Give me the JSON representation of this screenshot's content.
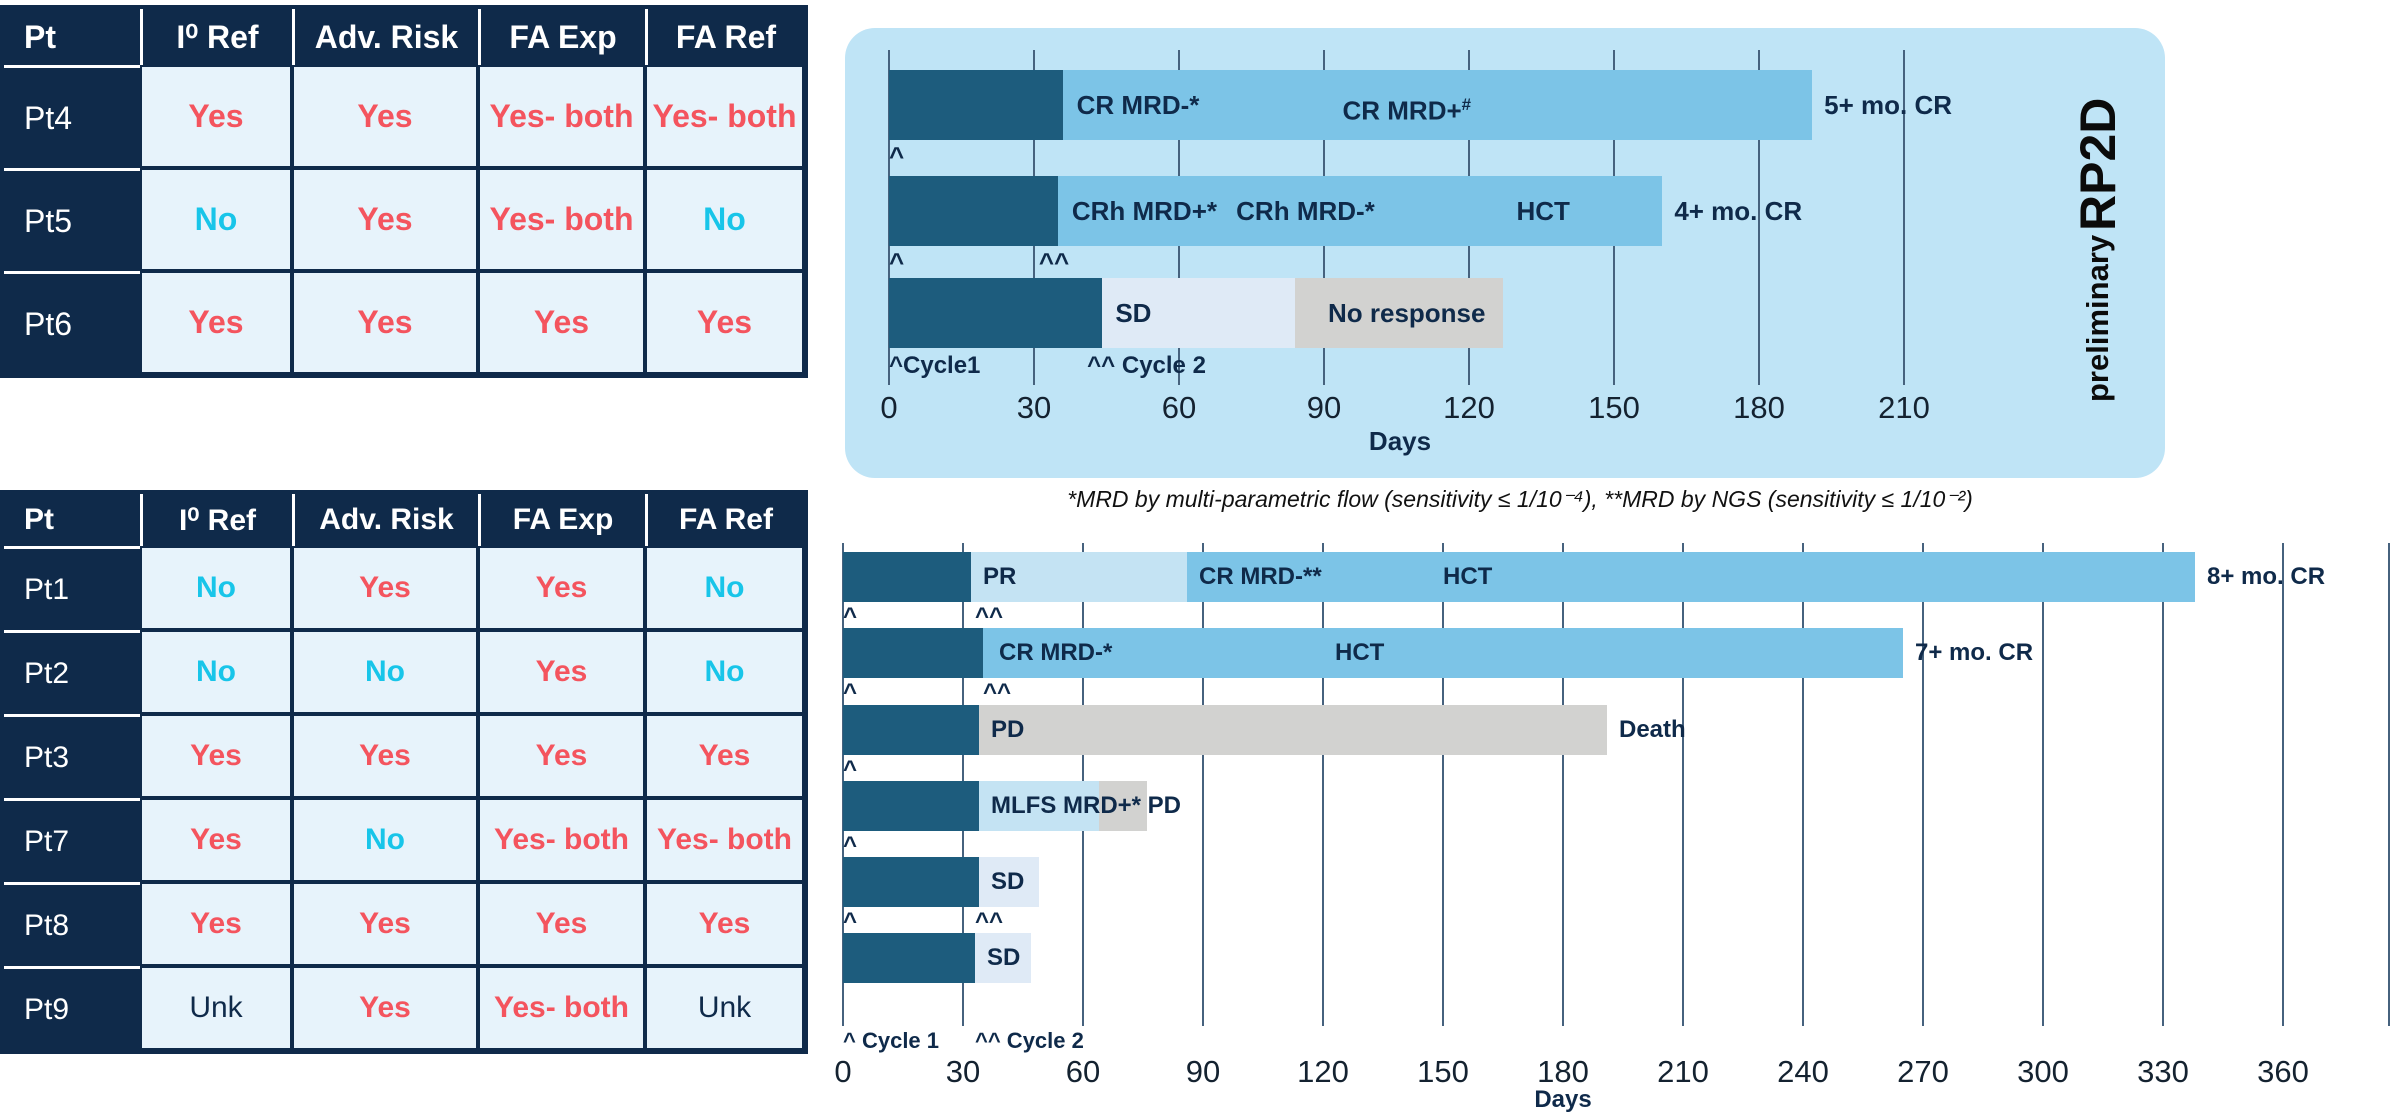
{
  "colors": {
    "navy": "#0f2a4a",
    "red": "#f4545e",
    "cyan": "#18c5e9",
    "cell_bg": "#e7f3fb",
    "panel_bg": "#bfe4f6",
    "bar_dark": "#1d5c7d",
    "bar_response": "#7cc4e7",
    "bar_partial": "#c4e3f3",
    "bar_sd": "#dfeaf6",
    "bar_none": "#d2d2d0",
    "grid": "#46627e",
    "tick_text": "#142230"
  },
  "tables": {
    "top": {
      "headers": [
        "Pt",
        "I⁰ Ref",
        "Adv. Risk",
        "FA Exp",
        "FA Ref"
      ],
      "rows": [
        {
          "pt": "Pt4",
          "cells": [
            {
              "text": "Yes",
              "color": "red"
            },
            {
              "text": "Yes",
              "color": "red"
            },
            {
              "text": "Yes- both",
              "color": "red"
            },
            {
              "text": "Yes- both",
              "color": "red"
            }
          ]
        },
        {
          "pt": "Pt5",
          "cells": [
            {
              "text": "No",
              "color": "cyan"
            },
            {
              "text": "Yes",
              "color": "red"
            },
            {
              "text": "Yes- both",
              "color": "red"
            },
            {
              "text": "No",
              "color": "cyan"
            }
          ]
        },
        {
          "pt": "Pt6",
          "cells": [
            {
              "text": "Yes",
              "color": "red"
            },
            {
              "text": "Yes",
              "color": "red"
            },
            {
              "text": "Yes",
              "color": "red"
            },
            {
              "text": "Yes",
              "color": "red"
            }
          ]
        }
      ]
    },
    "bottom": {
      "headers": [
        "Pt",
        "I⁰ Ref",
        "Adv. Risk",
        "FA Exp",
        "FA Ref"
      ],
      "rows": [
        {
          "pt": "Pt1",
          "cells": [
            {
              "text": "No",
              "color": "cyan"
            },
            {
              "text": "Yes",
              "color": "red"
            },
            {
              "text": "Yes",
              "color": "red"
            },
            {
              "text": "No",
              "color": "cyan"
            }
          ]
        },
        {
          "pt": "Pt2",
          "cells": [
            {
              "text": "No",
              "color": "cyan"
            },
            {
              "text": "No",
              "color": "cyan"
            },
            {
              "text": "Yes",
              "color": "red"
            },
            {
              "text": "No",
              "color": "cyan"
            }
          ]
        },
        {
          "pt": "Pt3",
          "cells": [
            {
              "text": "Yes",
              "color": "red"
            },
            {
              "text": "Yes",
              "color": "red"
            },
            {
              "text": "Yes",
              "color": "red"
            },
            {
              "text": "Yes",
              "color": "red"
            }
          ]
        },
        {
          "pt": "Pt7",
          "cells": [
            {
              "text": "Yes",
              "color": "red"
            },
            {
              "text": "No",
              "color": "cyan"
            },
            {
              "text": "Yes- both",
              "color": "red"
            },
            {
              "text": "Yes- both",
              "color": "red"
            }
          ]
        },
        {
          "pt": "Pt8",
          "cells": [
            {
              "text": "Yes",
              "color": "red"
            },
            {
              "text": "Yes",
              "color": "red"
            },
            {
              "text": "Yes",
              "color": "red"
            },
            {
              "text": "Yes",
              "color": "red"
            }
          ]
        },
        {
          "pt": "Pt9",
          "cells": [
            {
              "text": "Unk",
              "color": "navy"
            },
            {
              "text": "Yes",
              "color": "red"
            },
            {
              "text": "Yes- both",
              "color": "red"
            },
            {
              "text": "Unk",
              "color": "navy"
            }
          ]
        }
      ]
    }
  },
  "rp2d_label": {
    "line1": "preliminary",
    "line2": "RP2D"
  },
  "footnote": "*MRD by multi-parametric flow  (sensitivity ≤ 1/10⁻⁴), **MRD by NGS (sensitivity ≤ 1/10⁻²)",
  "chart_data": [
    {
      "id": "top",
      "type": "bar",
      "title": "preliminary RP2D swimmer plot",
      "xlabel": "Days",
      "xlim": [
        0,
        210
      ],
      "x_ticks": [
        0,
        30,
        60,
        90,
        120,
        150,
        180,
        210
      ],
      "grid": true,
      "bars": [
        {
          "patient": "Pt4",
          "segments": [
            {
              "from": 0,
              "to": 36,
              "state": "treatment"
            },
            {
              "from": 36,
              "to": 191,
              "state": "response"
            }
          ],
          "labels": [
            {
              "day": 38,
              "text": "CR MRD-*"
            },
            {
              "day": 93,
              "text": "CR MRD+",
              "sup": "#"
            }
          ],
          "end_label": "5+ mo. CR",
          "marks": [
            {
              "day": 0,
              "text": "^"
            }
          ]
        },
        {
          "patient": "Pt5",
          "segments": [
            {
              "from": 0,
              "to": 35,
              "state": "treatment"
            },
            {
              "from": 35,
              "to": 160,
              "state": "response"
            }
          ],
          "labels": [
            {
              "day": 37,
              "text": "CRh MRD+*"
            },
            {
              "day": 71,
              "text": "CRh MRD-*"
            },
            {
              "day": 129,
              "text": "HCT"
            }
          ],
          "end_label": "4+ mo. CR",
          "marks": [
            {
              "day": 0,
              "text": "^"
            },
            {
              "day": 31,
              "text": "^^"
            }
          ]
        },
        {
          "patient": "Pt6",
          "segments": [
            {
              "from": 0,
              "to": 44,
              "state": "treatment"
            },
            {
              "from": 44,
              "to": 84,
              "state": "stable"
            },
            {
              "from": 84,
              "to": 127,
              "state": "none"
            }
          ],
          "labels": [
            {
              "day": 46,
              "text": "SD"
            },
            {
              "day": 90,
              "text": "No response"
            }
          ],
          "end_label": "",
          "marks": []
        }
      ],
      "legend": [
        {
          "day": 0,
          "text": "^Cycle1"
        },
        {
          "day": 41,
          "text": "^^ Cycle 2"
        }
      ]
    },
    {
      "id": "bottom",
      "type": "bar",
      "title": "swimmer plot all patients",
      "xlabel": "Days",
      "xlim": [
        0,
        360
      ],
      "x_ticks": [
        0,
        30,
        60,
        90,
        120,
        150,
        180,
        210,
        240,
        270,
        300,
        330,
        360
      ],
      "grid": true,
      "bars": [
        {
          "patient": "Pt1",
          "segments": [
            {
              "from": 0,
              "to": 32,
              "state": "treatment"
            },
            {
              "from": 32,
              "to": 86,
              "state": "partial"
            },
            {
              "from": 86,
              "to": 338,
              "state": "response"
            }
          ],
          "labels": [
            {
              "day": 34,
              "text": "PR"
            },
            {
              "day": 88,
              "text": "CR MRD-**"
            },
            {
              "day": 149,
              "text": "HCT"
            }
          ],
          "end_label": "8+ mo. CR",
          "marks": [
            {
              "day": 0,
              "text": "^"
            },
            {
              "day": 33,
              "text": "^^"
            }
          ]
        },
        {
          "patient": "Pt2",
          "segments": [
            {
              "from": 0,
              "to": 35,
              "state": "treatment"
            },
            {
              "from": 35,
              "to": 265,
              "state": "response"
            }
          ],
          "labels": [
            {
              "day": 38,
              "text": "CR MRD-*"
            },
            {
              "day": 122,
              "text": "HCT"
            }
          ],
          "end_label": "7+ mo. CR",
          "marks": [
            {
              "day": 0,
              "text": "^"
            },
            {
              "day": 35,
              "text": "^^"
            }
          ]
        },
        {
          "patient": "Pt3",
          "segments": [
            {
              "from": 0,
              "to": 34,
              "state": "treatment"
            },
            {
              "from": 34,
              "to": 191,
              "state": "none"
            }
          ],
          "labels": [
            {
              "day": 36,
              "text": "PD"
            }
          ],
          "end_label": "Death",
          "marks": [
            {
              "day": 0,
              "text": "^"
            }
          ]
        },
        {
          "patient": "Pt7",
          "segments": [
            {
              "from": 0,
              "to": 34,
              "state": "treatment"
            },
            {
              "from": 34,
              "to": 64,
              "state": "partial"
            },
            {
              "from": 64,
              "to": 76,
              "state": "none"
            }
          ],
          "labels": [
            {
              "day": 36,
              "text": "MLFS MRD+* PD"
            }
          ],
          "end_label": "",
          "marks": [
            {
              "day": 0,
              "text": "^"
            }
          ]
        },
        {
          "patient": "Pt8",
          "segments": [
            {
              "from": 0,
              "to": 34,
              "state": "treatment"
            },
            {
              "from": 34,
              "to": 49,
              "state": "stable"
            }
          ],
          "labels": [
            {
              "day": 36,
              "text": "SD"
            }
          ],
          "end_label": "",
          "marks": [
            {
              "day": 0,
              "text": "^"
            },
            {
              "day": 33,
              "text": "^^"
            }
          ]
        },
        {
          "patient": "Pt9",
          "segments": [
            {
              "from": 0,
              "to": 33,
              "state": "treatment"
            },
            {
              "from": 33,
              "to": 47,
              "state": "stable"
            }
          ],
          "labels": [
            {
              "day": 35,
              "text": "SD"
            }
          ],
          "end_label": "",
          "marks": []
        }
      ],
      "legend": [
        {
          "day": 0,
          "text": "^ Cycle 1"
        },
        {
          "day": 33,
          "text": "^^ Cycle 2"
        }
      ]
    }
  ]
}
